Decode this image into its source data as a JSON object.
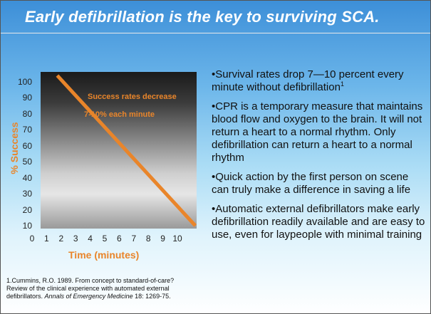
{
  "title": "Early defibrillation is the key to surviving SCA.",
  "colors": {
    "line": "#e9852a",
    "title": "#ffffff",
    "text": "#111111"
  },
  "chart_data": {
    "type": "line",
    "xlabel": "Time (minutes)",
    "ylabel": "% Success",
    "x_ticks": [
      "0",
      "1",
      "2",
      "3",
      "4",
      "5",
      "6",
      "7",
      "8",
      "9",
      "10"
    ],
    "y_ticks": [
      "10",
      "20",
      "30",
      "40",
      "50",
      "60",
      "70",
      "80",
      "90",
      "100"
    ],
    "xlim": [
      0,
      10.5
    ],
    "ylim": [
      10,
      105
    ],
    "series": [
      {
        "x": [
          1,
          10.5
        ],
        "y": [
          104,
          10
        ]
      }
    ],
    "annotations": [
      "Success rates decrease",
      "7-10% each minute"
    ],
    "grid": false
  },
  "bullets": [
    {
      "text": "•Survival rates drop 7—10 percent every minute without defibrillation",
      "sup": "1"
    },
    {
      "text": "•CPR is a temporary measure that maintains blood flow and oxygen to the brain. It will not return a heart to a normal rhythm. Only defibrillation can return a heart to a normal rhythm",
      "sup": ""
    },
    {
      "text": "•Quick action by the first person on scene can truly make a difference in saving a life",
      "sup": ""
    },
    {
      "text": "•Automatic external defibrillators make early defibrillation readily available and are easy to use, even for laypeople with minimal training",
      "sup": ""
    }
  ],
  "reference": {
    "prefix": "1.Cummins, R.O. 1989. From concept to standard-of-care? Review of the clinical experience with automated external defibrillators. ",
    "journal": "Annals of Emergency Medicine",
    "suffix": " 18: 1269-75."
  }
}
